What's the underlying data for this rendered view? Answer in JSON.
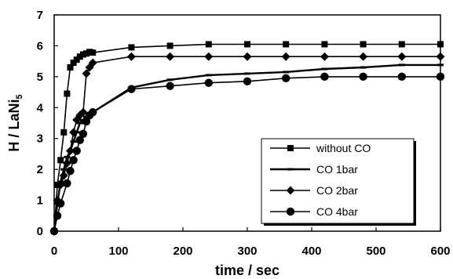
{
  "chart_data": {
    "type": "line",
    "title": "",
    "xlabel": "time / sec",
    "ylabel": "H / LaNi",
    "ylabel_subscript": "5",
    "xlim": [
      0,
      600
    ],
    "ylim": [
      0,
      7
    ],
    "x_ticks": [
      0,
      100,
      200,
      300,
      400,
      500,
      600
    ],
    "y_ticks": [
      0,
      1,
      2,
      3,
      4,
      5,
      6,
      7
    ],
    "grid": false,
    "legend_position": "lower-right",
    "series": [
      {
        "name": "without CO",
        "marker": "square",
        "color": "#000000",
        "points": [
          [
            0,
            0
          ],
          [
            5,
            1.5
          ],
          [
            10,
            2.3
          ],
          [
            15,
            3.2
          ],
          [
            20,
            4.45
          ],
          [
            25,
            5.3
          ],
          [
            30,
            5.45
          ],
          [
            35,
            5.55
          ],
          [
            40,
            5.65
          ],
          [
            45,
            5.72
          ],
          [
            50,
            5.75
          ],
          [
            55,
            5.8
          ],
          [
            60,
            5.78
          ],
          [
            120,
            5.95
          ],
          [
            180,
            6.0
          ],
          [
            240,
            6.05
          ],
          [
            300,
            6.05
          ],
          [
            360,
            6.05
          ],
          [
            420,
            6.05
          ],
          [
            480,
            6.05
          ],
          [
            540,
            6.05
          ],
          [
            600,
            6.05
          ]
        ]
      },
      {
        "name": "CO 1bar",
        "marker": "dash",
        "color": "#000000",
        "points": [
          [
            0,
            0
          ],
          [
            5,
            0.9
          ],
          [
            10,
            1.6
          ],
          [
            15,
            2.0
          ],
          [
            20,
            2.4
          ],
          [
            25,
            2.6
          ],
          [
            30,
            2.9
          ],
          [
            35,
            3.2
          ],
          [
            40,
            3.5
          ],
          [
            45,
            3.6
          ],
          [
            50,
            3.7
          ],
          [
            55,
            3.8
          ],
          [
            60,
            3.85
          ],
          [
            120,
            4.65
          ],
          [
            180,
            4.9
          ],
          [
            240,
            5.05
          ],
          [
            300,
            5.1
          ],
          [
            360,
            5.15
          ],
          [
            420,
            5.25
          ],
          [
            480,
            5.3
          ],
          [
            540,
            5.38
          ],
          [
            600,
            5.38
          ]
        ]
      },
      {
        "name": "CO 2bar",
        "marker": "diamond",
        "color": "#000000",
        "points": [
          [
            0,
            0
          ],
          [
            5,
            1.0
          ],
          [
            10,
            1.5
          ],
          [
            15,
            1.8
          ],
          [
            20,
            2.2
          ],
          [
            25,
            2.6
          ],
          [
            30,
            3.2
          ],
          [
            35,
            3.6
          ],
          [
            40,
            3.75
          ],
          [
            45,
            3.85
          ],
          [
            50,
            5.1
          ],
          [
            55,
            5.3
          ],
          [
            60,
            5.45
          ],
          [
            120,
            5.65
          ],
          [
            180,
            5.65
          ],
          [
            240,
            5.65
          ],
          [
            300,
            5.65
          ],
          [
            360,
            5.65
          ],
          [
            420,
            5.65
          ],
          [
            480,
            5.65
          ],
          [
            540,
            5.65
          ],
          [
            600,
            5.65
          ]
        ]
      },
      {
        "name": "CO 4bar",
        "marker": "circle",
        "color": "#000000",
        "points": [
          [
            0,
            0
          ],
          [
            5,
            0.5
          ],
          [
            10,
            0.9
          ],
          [
            20,
            1.55
          ],
          [
            25,
            1.95
          ],
          [
            30,
            2.3
          ],
          [
            35,
            2.6
          ],
          [
            40,
            2.95
          ],
          [
            45,
            3.15
          ],
          [
            50,
            3.55
          ],
          [
            55,
            3.75
          ],
          [
            60,
            3.85
          ],
          [
            120,
            4.6
          ],
          [
            180,
            4.7
          ],
          [
            240,
            4.8
          ],
          [
            300,
            4.85
          ],
          [
            360,
            4.95
          ],
          [
            420,
            5.0
          ],
          [
            480,
            5.0
          ],
          [
            540,
            5.0
          ],
          [
            600,
            5.0
          ]
        ]
      }
    ]
  }
}
